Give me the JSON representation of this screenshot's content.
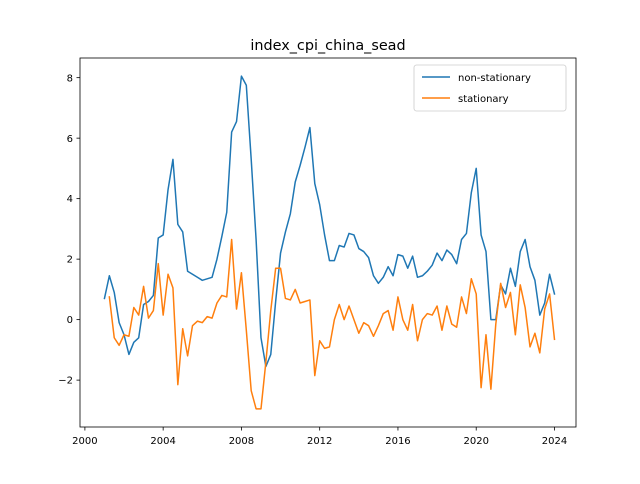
{
  "chart_data": {
    "type": "line",
    "title": "index_cpi_china_sead",
    "xlabel": "",
    "ylabel": "",
    "xlim": [
      1999.75,
      2025.1
    ],
    "ylim": [
      -3.55,
      8.65
    ],
    "xticks": [
      2000,
      2004,
      2008,
      2012,
      2016,
      2020,
      2024
    ],
    "yticks": [
      -2,
      0,
      2,
      4,
      6,
      8
    ],
    "legend_position": "top-right",
    "grid": false,
    "series": [
      {
        "name": "non-stationary",
        "color": "#1f77b4",
        "x": [
          2001.0,
          2001.25,
          2001.5,
          2001.75,
          2002.0,
          2002.25,
          2002.5,
          2002.75,
          2003.0,
          2003.25,
          2003.5,
          2003.75,
          2004.0,
          2004.25,
          2004.5,
          2004.75,
          2005.0,
          2005.25,
          2005.5,
          2005.75,
          2006.0,
          2006.25,
          2006.5,
          2006.75,
          2007.0,
          2007.25,
          2007.5,
          2007.75,
          2008.0,
          2008.25,
          2008.5,
          2008.75,
          2009.0,
          2009.25,
          2009.5,
          2009.75,
          2010.0,
          2010.25,
          2010.5,
          2010.75,
          2011.0,
          2011.25,
          2011.5,
          2011.75,
          2012.0,
          2012.25,
          2012.5,
          2012.75,
          2013.0,
          2013.25,
          2013.5,
          2013.75,
          2014.0,
          2014.25,
          2014.5,
          2014.75,
          2015.0,
          2015.25,
          2015.5,
          2015.75,
          2016.0,
          2016.25,
          2016.5,
          2016.75,
          2017.0,
          2017.25,
          2017.5,
          2017.75,
          2018.0,
          2018.25,
          2018.5,
          2018.75,
          2019.0,
          2019.25,
          2019.5,
          2019.75,
          2020.0,
          2020.25,
          2020.5,
          2020.75,
          2021.0,
          2021.25,
          2021.5,
          2021.75,
          2022.0,
          2022.25,
          2022.5,
          2022.75,
          2023.0,
          2023.25,
          2023.5,
          2023.75,
          2024.0
        ],
        "values": [
          0.7,
          1.45,
          0.9,
          -0.1,
          -0.5,
          -1.15,
          -0.75,
          -0.6,
          0.5,
          0.6,
          0.8,
          2.7,
          2.8,
          4.3,
          5.3,
          3.15,
          2.9,
          1.6,
          1.5,
          1.4,
          1.3,
          1.35,
          1.4,
          2.0,
          2.75,
          3.55,
          6.2,
          6.55,
          8.05,
          7.75,
          5.3,
          2.65,
          -0.6,
          -1.55,
          -1.15,
          0.6,
          2.2,
          2.9,
          3.5,
          4.55,
          5.1,
          5.7,
          6.35,
          4.5,
          3.8,
          2.8,
          1.95,
          1.95,
          2.45,
          2.4,
          2.85,
          2.8,
          2.35,
          2.25,
          2.05,
          1.45,
          1.2,
          1.4,
          1.75,
          1.45,
          2.15,
          2.1,
          1.7,
          2.1,
          1.4,
          1.45,
          1.6,
          1.8,
          2.2,
          1.95,
          2.3,
          2.15,
          1.85,
          2.65,
          2.85,
          4.2,
          5.0,
          2.8,
          2.25,
          0.0,
          0.0,
          1.15,
          0.85,
          1.7,
          1.1,
          2.25,
          2.65,
          1.75,
          1.3,
          0.15,
          0.55,
          1.5,
          0.85
        ]
      },
      {
        "name": "stationary",
        "color": "#ff7f0e",
        "x": [
          2001.25,
          2001.5,
          2001.75,
          2002.0,
          2002.25,
          2002.5,
          2002.75,
          2003.0,
          2003.25,
          2003.5,
          2003.75,
          2004.0,
          2004.25,
          2004.5,
          2004.75,
          2005.0,
          2005.25,
          2005.5,
          2005.75,
          2006.0,
          2006.25,
          2006.5,
          2006.75,
          2007.0,
          2007.25,
          2007.5,
          2007.75,
          2008.0,
          2008.25,
          2008.5,
          2008.75,
          2009.0,
          2009.25,
          2009.5,
          2009.75,
          2010.0,
          2010.25,
          2010.5,
          2010.75,
          2011.0,
          2011.25,
          2011.5,
          2011.75,
          2012.0,
          2012.25,
          2012.5,
          2012.75,
          2013.0,
          2013.25,
          2013.5,
          2013.75,
          2014.0,
          2014.25,
          2014.5,
          2014.75,
          2015.0,
          2015.25,
          2015.5,
          2015.75,
          2016.0,
          2016.25,
          2016.5,
          2016.75,
          2017.0,
          2017.25,
          2017.5,
          2017.75,
          2018.0,
          2018.25,
          2018.5,
          2018.75,
          2019.0,
          2019.25,
          2019.5,
          2019.75,
          2020.0,
          2020.25,
          2020.5,
          2020.75,
          2021.0,
          2021.25,
          2021.5,
          2021.75,
          2022.0,
          2022.25,
          2022.5,
          2022.75,
          2023.0,
          2023.25,
          2023.5,
          2023.75,
          2024.0
        ],
        "values": [
          0.75,
          -0.6,
          -0.85,
          -0.5,
          -0.55,
          0.4,
          0.15,
          1.1,
          0.05,
          0.3,
          1.85,
          0.15,
          1.5,
          1.05,
          -2.15,
          -0.3,
          -1.2,
          -0.2,
          -0.05,
          -0.1,
          0.1,
          0.05,
          0.55,
          0.8,
          0.75,
          2.65,
          0.35,
          1.55,
          -0.35,
          -2.35,
          -2.95,
          -2.95,
          -1.4,
          0.3,
          1.7,
          1.7,
          0.7,
          0.65,
          1.0,
          0.55,
          0.6,
          0.65,
          -1.85,
          -0.7,
          -0.95,
          -0.9,
          0.0,
          0.5,
          0.0,
          0.45,
          0.0,
          -0.45,
          -0.1,
          -0.2,
          -0.55,
          -0.2,
          0.2,
          0.3,
          -0.35,
          0.75,
          0.0,
          -0.35,
          0.5,
          -0.7,
          0.0,
          0.2,
          0.15,
          0.45,
          -0.35,
          0.45,
          -0.15,
          -0.25,
          0.75,
          0.2,
          1.35,
          0.85,
          -2.25,
          -0.5,
          -2.3,
          -0.15,
          1.2,
          0.4,
          0.9,
          -0.5,
          1.15,
          0.4,
          -0.9,
          -0.45,
          -1.1,
          0.35,
          0.85,
          -0.65
        ]
      }
    ]
  }
}
